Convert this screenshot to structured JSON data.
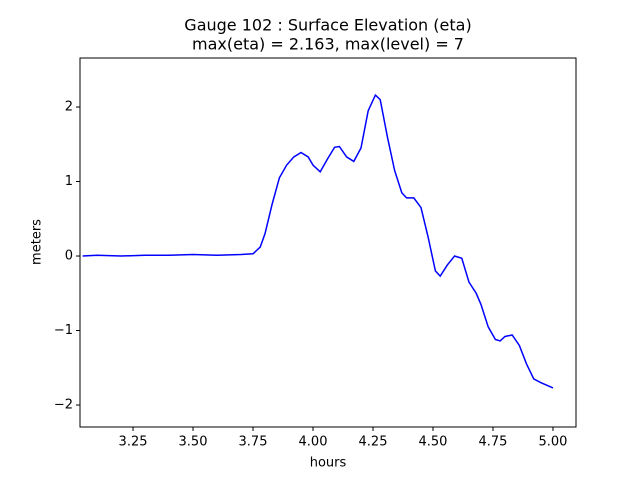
{
  "chart_data": {
    "type": "line",
    "title": [
      "Gauge 102 : Surface Elevation (eta)",
      "max(eta) =   2.163,    max(level) = 7"
    ],
    "x_label": "hours",
    "y_label": "meters",
    "x": [
      3.04,
      3.1,
      3.2,
      3.3,
      3.4,
      3.5,
      3.6,
      3.7,
      3.75,
      3.78,
      3.8,
      3.83,
      3.86,
      3.89,
      3.92,
      3.95,
      3.98,
      4.0,
      4.03,
      4.06,
      4.09,
      4.11,
      4.14,
      4.17,
      4.2,
      4.23,
      4.26,
      4.28,
      4.31,
      4.34,
      4.37,
      4.39,
      4.42,
      4.45,
      4.48,
      4.51,
      4.53,
      4.56,
      4.59,
      4.62,
      4.65,
      4.68,
      4.7,
      4.73,
      4.76,
      4.78,
      4.8,
      4.83,
      4.86,
      4.89,
      4.92,
      4.95,
      5.0
    ],
    "series": [
      {
        "name": "eta",
        "color": "#0000ff",
        "values": [
          0.0,
          0.01,
          0.0,
          0.01,
          0.01,
          0.02,
          0.01,
          0.02,
          0.03,
          0.12,
          0.3,
          0.7,
          1.05,
          1.22,
          1.33,
          1.39,
          1.33,
          1.22,
          1.13,
          1.3,
          1.46,
          1.47,
          1.33,
          1.27,
          1.45,
          1.95,
          2.16,
          2.1,
          1.6,
          1.15,
          0.85,
          0.78,
          0.78,
          0.65,
          0.25,
          -0.2,
          -0.27,
          -0.12,
          0.0,
          -0.03,
          -0.35,
          -0.5,
          -0.65,
          -0.95,
          -1.12,
          -1.14,
          -1.08,
          -1.06,
          -1.2,
          -1.45,
          -1.65,
          -1.7,
          -1.77
        ]
      }
    ],
    "xlim": [
      3.029,
      5.096
    ],
    "ylim": [
      -2.295,
      2.658
    ],
    "xticks": [
      3.25,
      {
        "value": 3.5,
        "label": "3.50"
      },
      3.75,
      {
        "value": 4.0,
        "label": "4.00"
      },
      4.25,
      {
        "value": 4.5,
        "label": "4.50"
      },
      4.75,
      {
        "value": 5.0,
        "label": "5.00"
      }
    ],
    "yticks": [
      {
        "value": -2,
        "label": "−2"
      },
      {
        "value": -1,
        "label": "−1"
      },
      0,
      1,
      2
    ],
    "grid": false
  }
}
